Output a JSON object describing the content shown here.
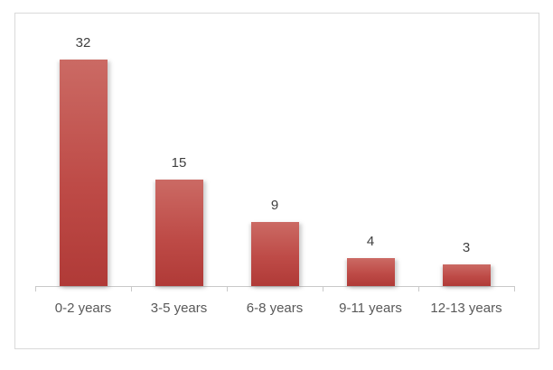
{
  "chart_data": {
    "type": "bar",
    "title": "",
    "xlabel": "",
    "ylabel": "",
    "categories": [
      "0-2 years",
      "3-5 years",
      "6-8 years",
      "9-11 years",
      "12-13 years"
    ],
    "values": [
      32,
      15,
      9,
      4,
      3
    ],
    "data_labels": [
      "32",
      "15",
      "9",
      "4",
      "3"
    ],
    "ylim": [
      0,
      35
    ],
    "grid": "off",
    "legend": "none",
    "y_axis_visible": false,
    "x_axis_visible": true
  },
  "colors": {
    "bar_gradient_top": "#cb6a64",
    "bar_gradient_mid": "#be4b47",
    "bar_gradient_bottom": "#b03a37",
    "frame_border": "#d9d9d9",
    "axis_line": "#c9c9c9",
    "value_label": "#3f3f3f",
    "category_label": "#595959",
    "background": "#ffffff"
  }
}
